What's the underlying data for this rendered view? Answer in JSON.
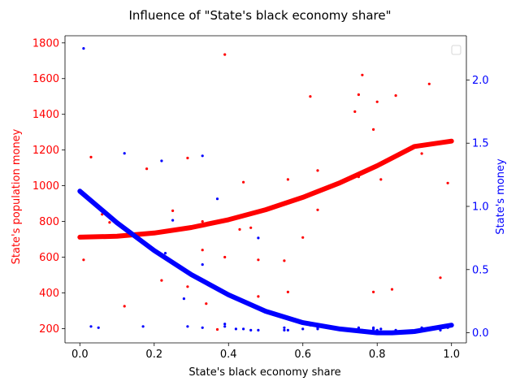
{
  "chart_data": {
    "type": "scatter",
    "title": "Influence of \"State's black economy share\"",
    "xlabel": "State's black economy share",
    "ylabel_left": "State's population money",
    "ylabel_right": "State's money",
    "xlim": [
      -0.04,
      1.04
    ],
    "ylim_left": [
      120,
      1840
    ],
    "ylim_right": [
      -0.08,
      2.35
    ],
    "x_ticks": [
      0.0,
      0.2,
      0.4,
      0.6,
      0.8,
      1.0
    ],
    "x_tick_labels": [
      "0.0",
      "0.2",
      "0.4",
      "0.6",
      "0.8",
      "1.0"
    ],
    "y_left_ticks": [
      200,
      400,
      600,
      800,
      1000,
      1200,
      1400,
      1600,
      1800
    ],
    "y_left_tick_labels": [
      "200",
      "400",
      "600",
      "800",
      "1000",
      "1200",
      "1400",
      "1600",
      "1800"
    ],
    "y_right_ticks": [
      0.0,
      0.5,
      1.0,
      1.5,
      2.0
    ],
    "y_right_tick_labels": [
      "0.0",
      "0.5",
      "1.0",
      "1.5",
      "2.0"
    ],
    "grid": false,
    "legend": "upper-right (empty)",
    "colors": {
      "left": "#ff0000",
      "right": "#0000ff"
    },
    "series": [
      {
        "axis": "left",
        "color": "#ff0000",
        "kind": "scatter",
        "points": [
          [
            0.01,
            585
          ],
          [
            0.03,
            1160
          ],
          [
            0.06,
            840
          ],
          [
            0.08,
            795
          ],
          [
            0.12,
            325
          ],
          [
            0.18,
            1095
          ],
          [
            0.22,
            470
          ],
          [
            0.25,
            860
          ],
          [
            0.29,
            435
          ],
          [
            0.29,
            1155
          ],
          [
            0.33,
            800
          ],
          [
            0.33,
            640
          ],
          [
            0.34,
            340
          ],
          [
            0.37,
            195
          ],
          [
            0.39,
            600
          ],
          [
            0.39,
            1735
          ],
          [
            0.43,
            755
          ],
          [
            0.44,
            1020
          ],
          [
            0.46,
            765
          ],
          [
            0.48,
            585
          ],
          [
            0.48,
            380
          ],
          [
            0.55,
            580
          ],
          [
            0.56,
            1035
          ],
          [
            0.56,
            405
          ],
          [
            0.6,
            710
          ],
          [
            0.62,
            1500
          ],
          [
            0.64,
            865
          ],
          [
            0.64,
            1085
          ],
          [
            0.74,
            1415
          ],
          [
            0.75,
            1050
          ],
          [
            0.75,
            1510
          ],
          [
            0.76,
            1620
          ],
          [
            0.79,
            1315
          ],
          [
            0.79,
            405
          ],
          [
            0.8,
            1470
          ],
          [
            0.81,
            1035
          ],
          [
            0.84,
            420
          ],
          [
            0.85,
            1505
          ],
          [
            0.92,
            1180
          ],
          [
            0.94,
            1570
          ],
          [
            0.97,
            485
          ],
          [
            0.99,
            1015
          ]
        ]
      },
      {
        "axis": "left",
        "color": "#ff0000",
        "kind": "line",
        "points": [
          [
            0.0,
            712
          ],
          [
            0.1,
            717
          ],
          [
            0.2,
            735
          ],
          [
            0.3,
            766
          ],
          [
            0.4,
            810
          ],
          [
            0.5,
            866
          ],
          [
            0.6,
            935
          ],
          [
            0.7,
            1017
          ],
          [
            0.8,
            1112
          ],
          [
            0.9,
            1220
          ],
          [
            1.0,
            1250
          ]
        ]
      },
      {
        "axis": "right",
        "color": "#0000ff",
        "kind": "scatter",
        "points": [
          [
            0.01,
            2.25
          ],
          [
            0.03,
            0.05
          ],
          [
            0.05,
            0.04
          ],
          [
            0.08,
            0.92
          ],
          [
            0.12,
            1.42
          ],
          [
            0.17,
            0.05
          ],
          [
            0.22,
            1.36
          ],
          [
            0.23,
            0.63
          ],
          [
            0.25,
            0.89
          ],
          [
            0.28,
            0.27
          ],
          [
            0.29,
            0.05
          ],
          [
            0.33,
            0.54
          ],
          [
            0.33,
            0.04
          ],
          [
            0.33,
            1.4
          ],
          [
            0.37,
            1.06
          ],
          [
            0.39,
            0.05
          ],
          [
            0.39,
            0.07
          ],
          [
            0.42,
            0.03
          ],
          [
            0.44,
            0.03
          ],
          [
            0.46,
            0.02
          ],
          [
            0.48,
            0.75
          ],
          [
            0.48,
            0.02
          ],
          [
            0.55,
            0.02
          ],
          [
            0.55,
            0.04
          ],
          [
            0.56,
            0.02
          ],
          [
            0.6,
            0.03
          ],
          [
            0.62,
            0.06
          ],
          [
            0.64,
            0.04
          ],
          [
            0.64,
            0.03
          ],
          [
            0.75,
            0.04
          ],
          [
            0.75,
            0.03
          ],
          [
            0.76,
            0.02
          ],
          [
            0.79,
            0.03
          ],
          [
            0.79,
            0.04
          ],
          [
            0.8,
            0.02
          ],
          [
            0.81,
            0.03
          ],
          [
            0.85,
            0.02
          ],
          [
            0.92,
            0.04
          ],
          [
            0.94,
            0.03
          ],
          [
            0.97,
            0.02
          ],
          [
            0.99,
            0.04
          ]
        ]
      },
      {
        "axis": "right",
        "color": "#0000ff",
        "kind": "line",
        "points": [
          [
            0.0,
            1.12
          ],
          [
            0.1,
            0.87
          ],
          [
            0.2,
            0.65
          ],
          [
            0.3,
            0.46
          ],
          [
            0.4,
            0.3
          ],
          [
            0.5,
            0.17
          ],
          [
            0.6,
            0.08
          ],
          [
            0.7,
            0.03
          ],
          [
            0.8,
            0.0
          ],
          [
            0.84,
            0.0
          ],
          [
            0.9,
            0.01
          ],
          [
            1.0,
            0.06
          ]
        ]
      }
    ]
  }
}
